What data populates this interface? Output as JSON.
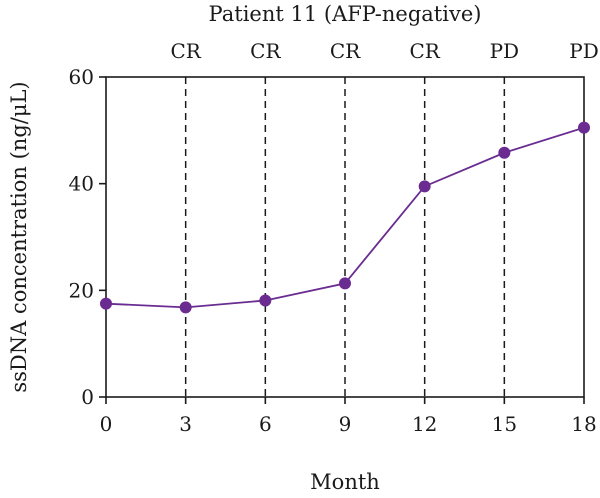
{
  "chart_data": {
    "type": "line",
    "title": "Patient 11 (AFP-negative)",
    "xlabel": "Month",
    "ylabel": "ssDNA concentration (ng/μL)",
    "xlim": [
      0,
      18
    ],
    "ylim": [
      0,
      60
    ],
    "x_ticks": [
      0,
      3,
      6,
      9,
      12,
      15,
      18
    ],
    "y_ticks": [
      0,
      20,
      40,
      60
    ],
    "grid": false,
    "legend": "none",
    "series": [
      {
        "color": "#6a2c91",
        "x": [
          0,
          3,
          6,
          9,
          12,
          15,
          18
        ],
        "y": [
          17.5,
          16.8,
          18.1,
          21.3,
          39.5,
          45.8,
          50.5
        ]
      }
    ],
    "vertical_lines": {
      "x": [
        3,
        6,
        9,
        12,
        15
      ],
      "style": "dashed"
    },
    "phase_labels": [
      {
        "x": 3,
        "label": "CR"
      },
      {
        "x": 6,
        "label": "CR"
      },
      {
        "x": 9,
        "label": "CR"
      },
      {
        "x": 12,
        "label": "CR"
      },
      {
        "x": 15,
        "label": "PD"
      },
      {
        "x": 18,
        "label": "PD"
      }
    ]
  }
}
